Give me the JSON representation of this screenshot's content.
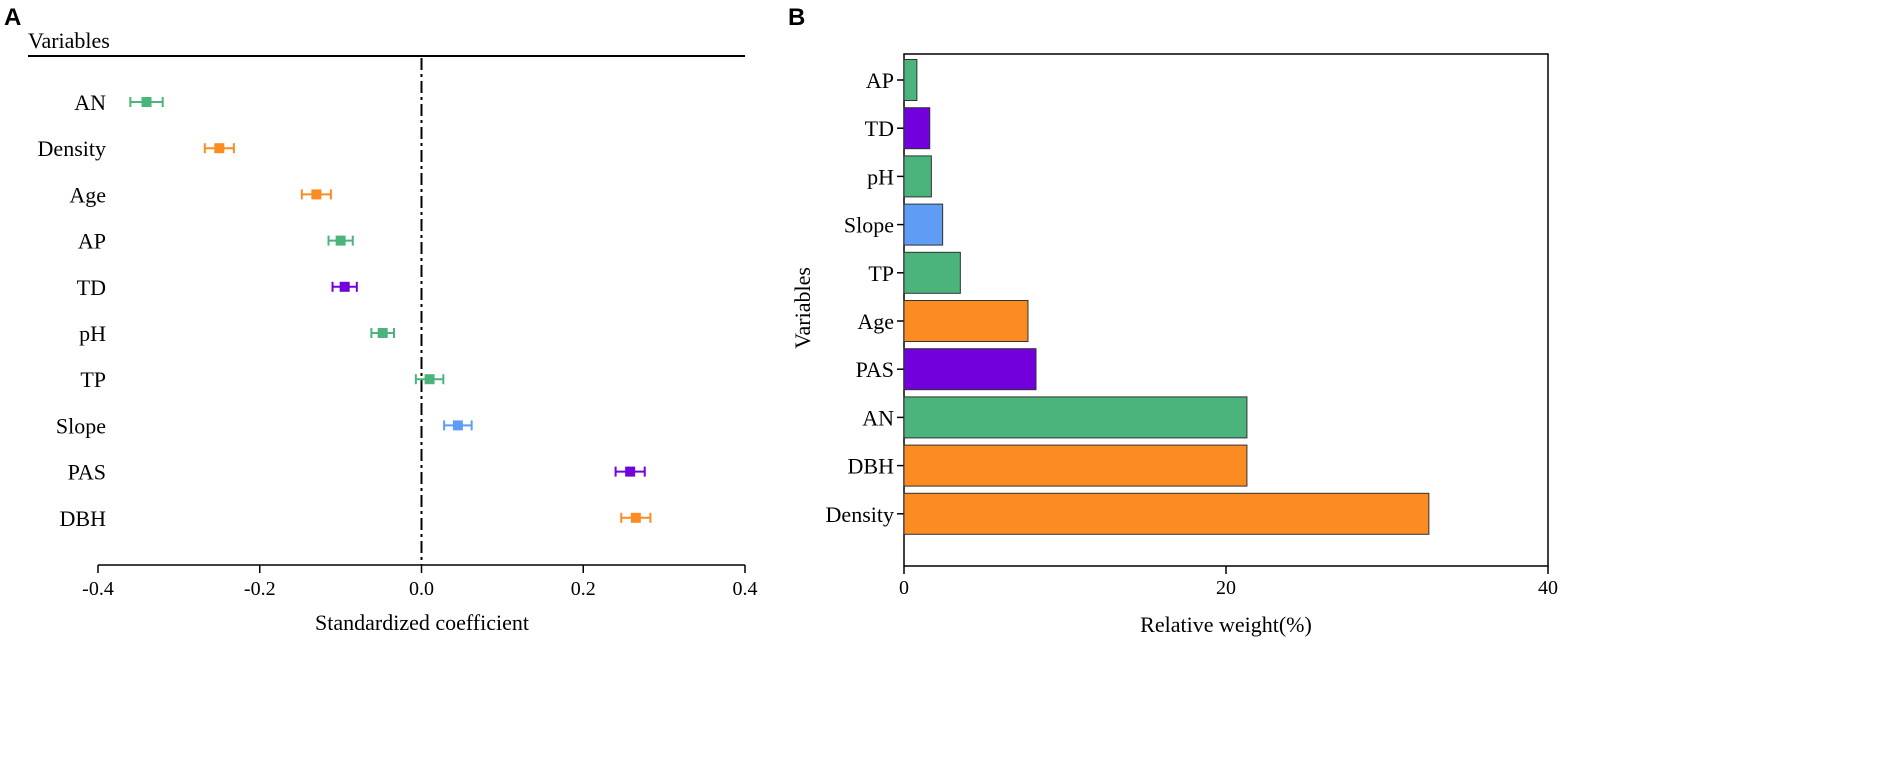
{
  "colors": {
    "green": "#4bb47c",
    "orange": "#fb8c22",
    "purple": "#7100dc",
    "blue": "#5e9cf5",
    "axis": "#000000"
  },
  "chart_data": [
    {
      "panel": "A",
      "type": "scatter",
      "subtype": "forest-plot",
      "header": "Variables",
      "xlabel": "Standardized coefficient",
      "xlim": [
        -0.4,
        0.4
      ],
      "xticks": [
        -0.4,
        -0.2,
        0.0,
        0.2,
        0.4
      ],
      "xtick_labels": [
        "-0.4",
        "-0.2",
        "0.0",
        "0.2",
        "0.4"
      ],
      "reference_line": 0.0,
      "points": [
        {
          "label": "AN",
          "value": -0.34,
          "err": 0.02,
          "color": "green"
        },
        {
          "label": "Density",
          "value": -0.25,
          "err": 0.018,
          "color": "orange"
        },
        {
          "label": "Age",
          "value": -0.13,
          "err": 0.018,
          "color": "orange"
        },
        {
          "label": "AP",
          "value": -0.1,
          "err": 0.015,
          "color": "green"
        },
        {
          "label": "TD",
          "value": -0.095,
          "err": 0.015,
          "color": "purple"
        },
        {
          "label": "pH",
          "value": -0.048,
          "err": 0.014,
          "color": "green"
        },
        {
          "label": "TP",
          "value": 0.01,
          "err": 0.017,
          "color": "green"
        },
        {
          "label": "Slope",
          "value": 0.045,
          "err": 0.017,
          "color": "blue"
        },
        {
          "label": "PAS",
          "value": 0.258,
          "err": 0.018,
          "color": "purple"
        },
        {
          "label": "DBH",
          "value": 0.265,
          "err": 0.018,
          "color": "orange"
        }
      ]
    },
    {
      "panel": "B",
      "type": "bar",
      "orientation": "horizontal",
      "ylabel": "Variables",
      "xlabel": "Relative weight(%)",
      "xlim": [
        0,
        40
      ],
      "xticks": [
        0,
        20,
        40
      ],
      "xtick_labels": [
        "0",
        "20",
        "40"
      ],
      "bars": [
        {
          "label": "AP",
          "value": 0.8,
          "color": "green"
        },
        {
          "label": "TD",
          "value": 1.6,
          "color": "purple"
        },
        {
          "label": "pH",
          "value": 1.7,
          "color": "green"
        },
        {
          "label": "Slope",
          "value": 2.4,
          "color": "blue"
        },
        {
          "label": "TP",
          "value": 3.5,
          "color": "green"
        },
        {
          "label": "Age",
          "value": 7.7,
          "color": "orange"
        },
        {
          "label": "PAS",
          "value": 8.2,
          "color": "purple"
        },
        {
          "label": "AN",
          "value": 21.3,
          "color": "green"
        },
        {
          "label": "DBH",
          "value": 21.3,
          "color": "orange"
        },
        {
          "label": "Density",
          "value": 32.6,
          "color": "orange"
        }
      ]
    }
  ]
}
